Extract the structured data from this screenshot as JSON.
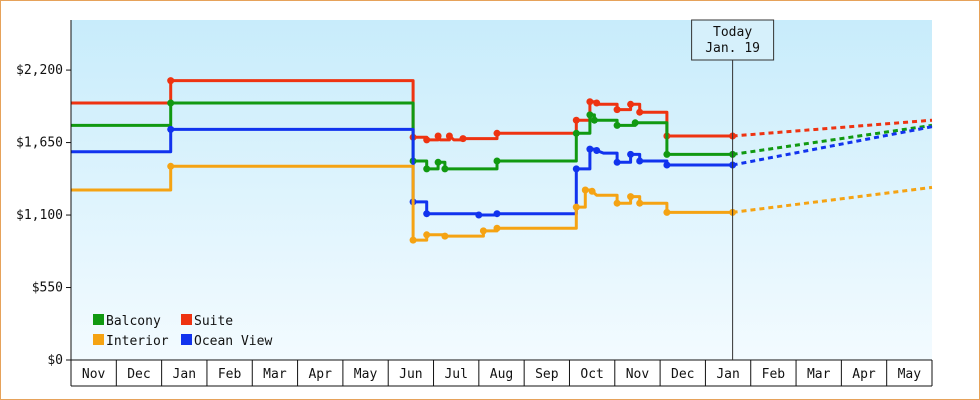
{
  "chart_data": {
    "type": "line",
    "title": "",
    "xlabel": "",
    "ylabel": "",
    "y_ticks": [
      "$0",
      "$550",
      "$1,100",
      "$1,650",
      "$2,200"
    ],
    "y_tick_values": [
      0,
      550,
      1100,
      1650,
      2200
    ],
    "ylim": [
      0,
      2580
    ],
    "months": [
      "Nov",
      "Dec",
      "Jan",
      "Feb",
      "Mar",
      "Apr",
      "May",
      "Jun",
      "Jul",
      "Aug",
      "Sep",
      "Oct",
      "Nov",
      "Dec",
      "Jan",
      "Feb",
      "Mar",
      "Apr",
      "May"
    ],
    "x_unit": "months since Nov 1 (year 1)",
    "xlim": [
      0,
      19
    ],
    "today": {
      "line1": "Today",
      "line2": "Jan. 19",
      "x": 14.6
    },
    "legend_position": "bottom-left",
    "grid": false,
    "series": [
      {
        "name": "Suite",
        "color": "#ee3311",
        "points": [
          [
            0,
            1950
          ],
          [
            2.2,
            1950
          ],
          [
            2.2,
            2120
          ],
          [
            7.55,
            2120
          ],
          [
            7.55,
            1690
          ],
          [
            7.85,
            1690
          ],
          [
            7.85,
            1670
          ],
          [
            8.1,
            1670
          ],
          [
            8.1,
            1700
          ],
          [
            8.15,
            1670
          ],
          [
            8.35,
            1670
          ],
          [
            8.35,
            1700
          ],
          [
            8.45,
            1670
          ],
          [
            8.65,
            1670
          ],
          [
            8.65,
            1680
          ],
          [
            9.4,
            1680
          ],
          [
            9.4,
            1720
          ],
          [
            11.15,
            1720
          ],
          [
            11.15,
            1820
          ],
          [
            11.45,
            1820
          ],
          [
            11.45,
            1960
          ],
          [
            11.6,
            1960
          ],
          [
            11.6,
            1950
          ],
          [
            11.65,
            1940
          ],
          [
            12.05,
            1940
          ],
          [
            12.05,
            1900
          ],
          [
            12.35,
            1900
          ],
          [
            12.35,
            1940
          ],
          [
            12.55,
            1940
          ],
          [
            12.55,
            1880
          ],
          [
            13.15,
            1880
          ],
          [
            13.15,
            1700
          ],
          [
            14.6,
            1700
          ]
        ],
        "forecast": [
          [
            14.6,
            1700
          ],
          [
            19,
            1820
          ]
        ]
      },
      {
        "name": "Balcony",
        "color": "#119911",
        "points": [
          [
            0,
            1780
          ],
          [
            2.2,
            1780
          ],
          [
            2.2,
            1950
          ],
          [
            7.55,
            1950
          ],
          [
            7.55,
            1510
          ],
          [
            7.85,
            1510
          ],
          [
            7.85,
            1450
          ],
          [
            8.1,
            1450
          ],
          [
            8.1,
            1500
          ],
          [
            8.25,
            1500
          ],
          [
            8.25,
            1450
          ],
          [
            9.4,
            1450
          ],
          [
            9.4,
            1510
          ],
          [
            11.15,
            1510
          ],
          [
            11.15,
            1720
          ],
          [
            11.45,
            1720
          ],
          [
            11.45,
            1860
          ],
          [
            11.55,
            1860
          ],
          [
            11.55,
            1820
          ],
          [
            12.05,
            1820
          ],
          [
            12.05,
            1780
          ],
          [
            12.45,
            1780
          ],
          [
            12.45,
            1800
          ],
          [
            13.15,
            1800
          ],
          [
            13.15,
            1560
          ],
          [
            14.6,
            1560
          ]
        ],
        "forecast": [
          [
            14.6,
            1560
          ],
          [
            19,
            1780
          ]
        ]
      },
      {
        "name": "Ocean View",
        "color": "#1133ee",
        "points": [
          [
            0,
            1580
          ],
          [
            2.2,
            1580
          ],
          [
            2.2,
            1750
          ],
          [
            7.55,
            1750
          ],
          [
            7.55,
            1200
          ],
          [
            7.85,
            1200
          ],
          [
            7.85,
            1110
          ],
          [
            9.0,
            1110
          ],
          [
            9.0,
            1100
          ],
          [
            9.4,
            1100
          ],
          [
            9.4,
            1110
          ],
          [
            11.15,
            1110
          ],
          [
            11.15,
            1450
          ],
          [
            11.45,
            1450
          ],
          [
            11.45,
            1600
          ],
          [
            11.6,
            1600
          ],
          [
            11.6,
            1590
          ],
          [
            11.75,
            1570
          ],
          [
            12.05,
            1570
          ],
          [
            12.05,
            1500
          ],
          [
            12.35,
            1500
          ],
          [
            12.35,
            1560
          ],
          [
            12.55,
            1560
          ],
          [
            12.55,
            1510
          ],
          [
            13.15,
            1510
          ],
          [
            13.15,
            1480
          ],
          [
            14.6,
            1480
          ]
        ],
        "forecast": [
          [
            14.6,
            1480
          ],
          [
            19,
            1770
          ]
        ]
      },
      {
        "name": "Interior",
        "color": "#f5a313",
        "points": [
          [
            0,
            1290
          ],
          [
            2.2,
            1290
          ],
          [
            2.2,
            1470
          ],
          [
            7.55,
            1470
          ],
          [
            7.55,
            910
          ],
          [
            7.85,
            910
          ],
          [
            7.85,
            950
          ],
          [
            8.25,
            950
          ],
          [
            8.25,
            940
          ],
          [
            9.1,
            940
          ],
          [
            9.1,
            980
          ],
          [
            9.4,
            980
          ],
          [
            9.4,
            1000
          ],
          [
            11.15,
            1000
          ],
          [
            11.15,
            1160
          ],
          [
            11.35,
            1160
          ],
          [
            11.35,
            1290
          ],
          [
            11.5,
            1290
          ],
          [
            11.5,
            1280
          ],
          [
            11.6,
            1250
          ],
          [
            12.05,
            1250
          ],
          [
            12.05,
            1190
          ],
          [
            12.35,
            1190
          ],
          [
            12.35,
            1240
          ],
          [
            12.55,
            1240
          ],
          [
            12.55,
            1190
          ],
          [
            13.15,
            1190
          ],
          [
            13.15,
            1120
          ],
          [
            14.6,
            1120
          ]
        ],
        "forecast": [
          [
            14.6,
            1120
          ],
          [
            19,
            1310
          ]
        ]
      }
    ],
    "legend": [
      {
        "label": "Balcony",
        "color": "#119911"
      },
      {
        "label": "Suite",
        "color": "#ee3311"
      },
      {
        "label": "Interior",
        "color": "#f5a313"
      },
      {
        "label": "Ocean View",
        "color": "#1133ee"
      }
    ]
  }
}
